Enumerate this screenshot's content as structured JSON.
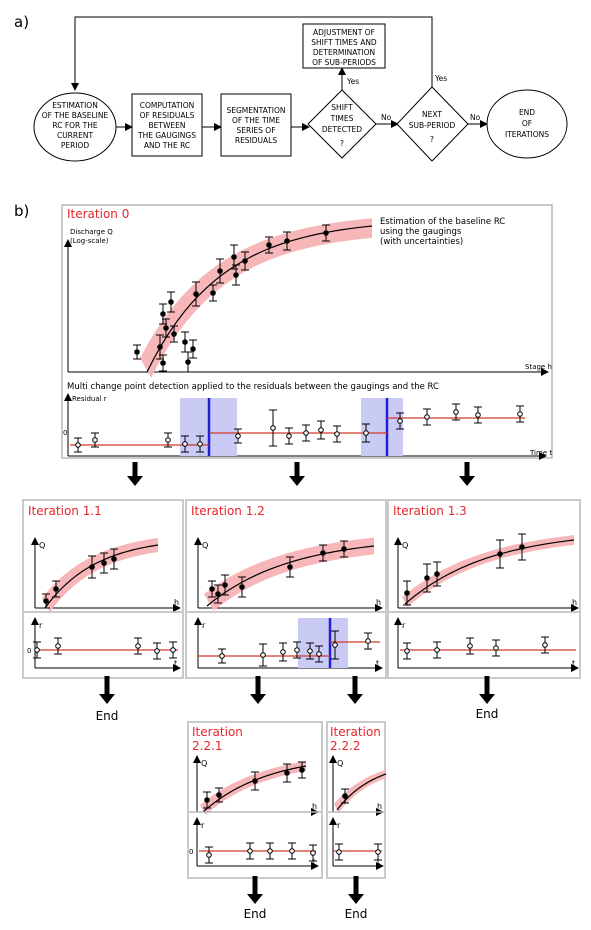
{
  "part_a": {
    "label": "a)",
    "baseline_box": [
      "ESTIMATION",
      "OF THE BASELINE",
      "RC FOR THE",
      "CURRENT",
      "PERIOD"
    ],
    "residuals_box": [
      "COMPUTATION",
      "OF RESIDUALS",
      "BETWEEN",
      "THE GAUGINGS",
      "AND THE RC"
    ],
    "segmentation_box": [
      "SEGMENTATION",
      "OF THE TIME",
      "SERIES OF",
      "RESIDUALS"
    ],
    "shift_decision": [
      "SHIFT",
      "TIMES",
      "DETECTED",
      "?"
    ],
    "adjustment_box": [
      "ADJUSTMENT OF",
      "SHIFT TIMES AND",
      "DETERMINATION",
      "OF SUB-PERIODS"
    ],
    "next_decision": [
      "NEXT",
      "SUB-PERIOD",
      "?"
    ],
    "end_box": [
      "END",
      "OF",
      "ITERATIONS"
    ],
    "yes_label": "Yes",
    "no_label": "No"
  },
  "part_b": {
    "label": "b)",
    "iter0": {
      "title": "Iteration 0",
      "q_label": "Discharge Q",
      "q_sub": "(Log-scale)",
      "h_label": "Stage h",
      "annotation": [
        "Estimation of the baseline RC",
        "using the gaugings",
        "(with uncertainties)"
      ],
      "residual_title": "Multi change point detection applied to the residuals between the gaugings and the RC",
      "r_label": "Residual r",
      "t_label": "Time t",
      "zero": "0"
    },
    "iter11": {
      "title": "Iteration 1.1"
    },
    "iter12": {
      "title": "Iteration 1.2"
    },
    "iter13": {
      "title": "Iteration 1.3"
    },
    "iter221": {
      "title": [
        "Iteration",
        "2.2.1"
      ]
    },
    "iter222": {
      "title": [
        "Iteration",
        "2.2.2"
      ]
    },
    "axis": {
      "q": "Q",
      "h": "h",
      "r": "r",
      "t": "t",
      "zero": "0"
    },
    "end_label": "End"
  },
  "colors": {
    "title_red": "#e8262a",
    "band_pink": "#f7b7b9",
    "shift_line": "#1f1fd6",
    "shift_band": "#c9cbf5",
    "residual_line": "#d23a2a"
  }
}
